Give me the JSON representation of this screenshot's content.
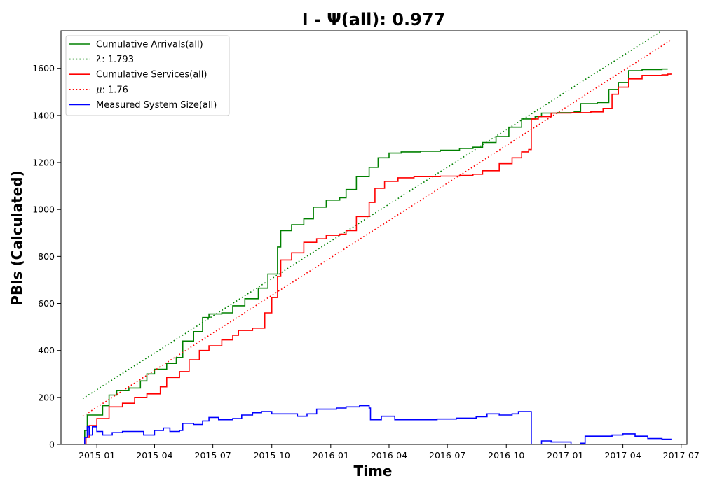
{
  "chart_data": {
    "type": "line",
    "title": "I -  Ψ(all): 0.977",
    "xlabel": "Time",
    "ylabel": "PBIs (Calculated)",
    "xlim": [
      "2014-11-06",
      "2017-07-10"
    ],
    "ylim": [
      0,
      1760
    ],
    "grid": false,
    "legend_position": "top-left",
    "x_ticks": [
      "2015-01",
      "2015-04",
      "2015-07",
      "2015-10",
      "2016-01",
      "2016-04",
      "2016-07",
      "2016-10",
      "2017-01",
      "2017-04",
      "2017-07"
    ],
    "x_tick_dates": [
      "2015-01-01",
      "2015-04-01",
      "2015-07-01",
      "2015-10-01",
      "2016-01-01",
      "2016-04-01",
      "2016-07-01",
      "2016-10-01",
      "2017-01-01",
      "2017-04-01",
      "2017-07-01"
    ],
    "y_ticks": [
      0,
      200,
      400,
      600,
      800,
      1000,
      1200,
      1400,
      1600
    ],
    "series": [
      {
        "name": "Cumulative Arrivals(all)",
        "color": "#008000",
        "style": "solid",
        "step": true,
        "points": [
          [
            "2014-12-10",
            0
          ],
          [
            "2014-12-13",
            60
          ],
          [
            "2014-12-17",
            125
          ],
          [
            "2014-12-31",
            125
          ],
          [
            "2015-01-10",
            165
          ],
          [
            "2015-01-20",
            210
          ],
          [
            "2015-02-01",
            230
          ],
          [
            "2015-02-20",
            240
          ],
          [
            "2015-03-10",
            270
          ],
          [
            "2015-03-20",
            300
          ],
          [
            "2015-04-01",
            320
          ],
          [
            "2015-04-20",
            345
          ],
          [
            "2015-05-05",
            370
          ],
          [
            "2015-05-15",
            440
          ],
          [
            "2015-06-01",
            480
          ],
          [
            "2015-06-15",
            540
          ],
          [
            "2015-06-25",
            555
          ],
          [
            "2015-07-15",
            560
          ],
          [
            "2015-08-01",
            590
          ],
          [
            "2015-08-20",
            620
          ],
          [
            "2015-09-10",
            665
          ],
          [
            "2015-09-25",
            725
          ],
          [
            "2015-10-10",
            840
          ],
          [
            "2015-10-15",
            910
          ],
          [
            "2015-11-01",
            935
          ],
          [
            "2015-11-20",
            960
          ],
          [
            "2015-12-05",
            1010
          ],
          [
            "2015-12-25",
            1040
          ],
          [
            "2016-01-15",
            1050
          ],
          [
            "2016-01-25",
            1085
          ],
          [
            "2016-02-10",
            1140
          ],
          [
            "2016-03-01",
            1180
          ],
          [
            "2016-03-15",
            1220
          ],
          [
            "2016-04-01",
            1240
          ],
          [
            "2016-04-20",
            1245
          ],
          [
            "2016-05-20",
            1248
          ],
          [
            "2016-06-20",
            1252
          ],
          [
            "2016-07-20",
            1260
          ],
          [
            "2016-08-10",
            1265
          ],
          [
            "2016-08-25",
            1285
          ],
          [
            "2016-09-15",
            1310
          ],
          [
            "2016-10-05",
            1350
          ],
          [
            "2016-10-25",
            1385
          ],
          [
            "2016-11-15",
            1395
          ],
          [
            "2016-11-25",
            1410
          ],
          [
            "2016-12-20",
            1412
          ],
          [
            "2017-01-15",
            1415
          ],
          [
            "2017-01-25",
            1450
          ],
          [
            "2017-02-20",
            1455
          ],
          [
            "2017-03-10",
            1510
          ],
          [
            "2017-03-25",
            1540
          ],
          [
            "2017-04-10",
            1590
          ],
          [
            "2017-05-01",
            1595
          ],
          [
            "2017-06-01",
            1597
          ],
          [
            "2017-06-10",
            1597
          ]
        ]
      },
      {
        "name": "λ: 1.793",
        "label_symbol": "λ",
        "label_value": ": 1.793",
        "color": "#008000",
        "style": "dotted",
        "step": false,
        "points": [
          [
            "2014-12-10",
            195
          ],
          [
            "2017-06-01",
            1760
          ]
        ]
      },
      {
        "name": "Cumulative Services(all)",
        "color": "#ff0000",
        "style": "solid",
        "step": true,
        "points": [
          [
            "2014-12-10",
            0
          ],
          [
            "2014-12-15",
            30
          ],
          [
            "2014-12-20",
            80
          ],
          [
            "2015-01-01",
            110
          ],
          [
            "2015-01-20",
            160
          ],
          [
            "2015-02-10",
            175
          ],
          [
            "2015-03-01",
            200
          ],
          [
            "2015-03-20",
            215
          ],
          [
            "2015-04-10",
            245
          ],
          [
            "2015-04-20",
            285
          ],
          [
            "2015-05-10",
            310
          ],
          [
            "2015-05-25",
            360
          ],
          [
            "2015-06-10",
            400
          ],
          [
            "2015-06-25",
            420
          ],
          [
            "2015-07-15",
            445
          ],
          [
            "2015-08-01",
            465
          ],
          [
            "2015-08-10",
            485
          ],
          [
            "2015-09-01",
            495
          ],
          [
            "2015-09-20",
            560
          ],
          [
            "2015-10-01",
            625
          ],
          [
            "2015-10-10",
            715
          ],
          [
            "2015-10-15",
            785
          ],
          [
            "2015-11-01",
            815
          ],
          [
            "2015-11-20",
            860
          ],
          [
            "2015-12-10",
            875
          ],
          [
            "2015-12-25",
            890
          ],
          [
            "2016-01-15",
            895
          ],
          [
            "2016-01-25",
            910
          ],
          [
            "2016-02-10",
            970
          ],
          [
            "2016-03-01",
            1030
          ],
          [
            "2016-03-10",
            1090
          ],
          [
            "2016-03-25",
            1120
          ],
          [
            "2016-04-15",
            1135
          ],
          [
            "2016-05-10",
            1140
          ],
          [
            "2016-06-20",
            1142
          ],
          [
            "2016-07-20",
            1145
          ],
          [
            "2016-08-10",
            1150
          ],
          [
            "2016-08-25",
            1165
          ],
          [
            "2016-09-20",
            1195
          ],
          [
            "2016-10-10",
            1220
          ],
          [
            "2016-10-25",
            1245
          ],
          [
            "2016-11-05",
            1255
          ],
          [
            "2016-11-09",
            1385
          ],
          [
            "2016-11-20",
            1395
          ],
          [
            "2016-12-10",
            1410
          ],
          [
            "2017-01-10",
            1412
          ],
          [
            "2017-02-10",
            1415
          ],
          [
            "2017-03-01",
            1430
          ],
          [
            "2017-03-15",
            1490
          ],
          [
            "2017-03-25",
            1520
          ],
          [
            "2017-04-10",
            1555
          ],
          [
            "2017-05-01",
            1570
          ],
          [
            "2017-06-01",
            1572
          ],
          [
            "2017-06-10",
            1575
          ],
          [
            "2017-06-15",
            1578
          ]
        ]
      },
      {
        "name": "μ: 1.76",
        "label_symbol": "μ",
        "label_value": ": 1.76",
        "color": "#ff0000",
        "style": "dotted",
        "step": false,
        "points": [
          [
            "2014-12-10",
            120
          ],
          [
            "2017-06-15",
            1720
          ]
        ]
      },
      {
        "name": "Measured System Size(all)",
        "color": "#0000ff",
        "style": "solid",
        "step": true,
        "points": [
          [
            "2014-12-10",
            0
          ],
          [
            "2014-12-13",
            30
          ],
          [
            "2014-12-17",
            75
          ],
          [
            "2014-12-20",
            40
          ],
          [
            "2014-12-25",
            75
          ],
          [
            "2015-01-01",
            55
          ],
          [
            "2015-01-10",
            40
          ],
          [
            "2015-01-25",
            50
          ],
          [
            "2015-02-10",
            55
          ],
          [
            "2015-03-01",
            55
          ],
          [
            "2015-03-15",
            40
          ],
          [
            "2015-04-01",
            60
          ],
          [
            "2015-04-15",
            70
          ],
          [
            "2015-04-25",
            55
          ],
          [
            "2015-05-10",
            60
          ],
          [
            "2015-05-15",
            90
          ],
          [
            "2015-06-01",
            85
          ],
          [
            "2015-06-15",
            100
          ],
          [
            "2015-06-25",
            115
          ],
          [
            "2015-07-10",
            105
          ],
          [
            "2015-08-01",
            110
          ],
          [
            "2015-08-15",
            125
          ],
          [
            "2015-09-01",
            135
          ],
          [
            "2015-09-15",
            140
          ],
          [
            "2015-10-01",
            130
          ],
          [
            "2015-10-20",
            130
          ],
          [
            "2015-11-10",
            120
          ],
          [
            "2015-11-25",
            130
          ],
          [
            "2015-12-10",
            150
          ],
          [
            "2016-01-10",
            155
          ],
          [
            "2016-01-25",
            160
          ],
          [
            "2016-02-15",
            165
          ],
          [
            "2016-03-01",
            155
          ],
          [
            "2016-03-03",
            105
          ],
          [
            "2016-03-20",
            120
          ],
          [
            "2016-04-10",
            105
          ],
          [
            "2016-05-10",
            105
          ],
          [
            "2016-06-15",
            108
          ],
          [
            "2016-07-15",
            112
          ],
          [
            "2016-08-15",
            118
          ],
          [
            "2016-09-01",
            130
          ],
          [
            "2016-09-20",
            125
          ],
          [
            "2016-10-10",
            130
          ],
          [
            "2016-10-20",
            140
          ],
          [
            "2016-11-01",
            140
          ],
          [
            "2016-11-09",
            0
          ],
          [
            "2016-11-25",
            15
          ],
          [
            "2016-12-10",
            10
          ],
          [
            "2017-01-10",
            0
          ],
          [
            "2017-01-25",
            5
          ],
          [
            "2017-02-01",
            35
          ],
          [
            "2017-03-01",
            35
          ],
          [
            "2017-03-15",
            40
          ],
          [
            "2017-04-01",
            45
          ],
          [
            "2017-04-20",
            35
          ],
          [
            "2017-05-10",
            25
          ],
          [
            "2017-06-01",
            22
          ],
          [
            "2017-06-15",
            20
          ]
        ]
      }
    ]
  }
}
